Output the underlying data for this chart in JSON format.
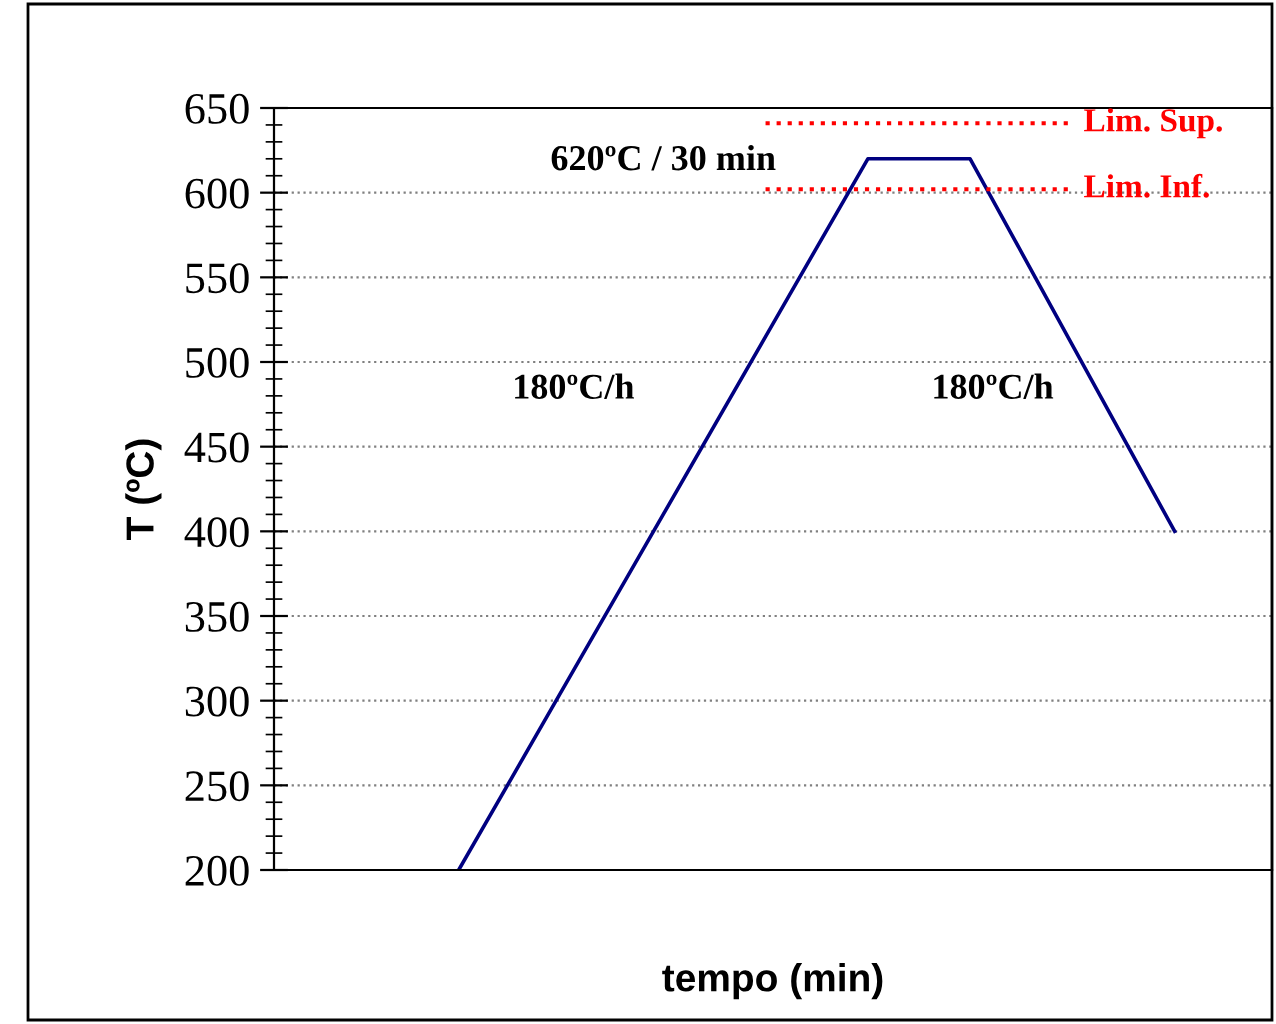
{
  "chart_data": {
    "type": "line",
    "xlabel": "tempo (min)",
    "ylabel": "T (ºC)",
    "categories": [
      null,
      null,
      null,
      null,
      null,
      null,
      null,
      null
    ],
    "ylim": [
      200,
      650
    ],
    "yticks": [
      200,
      250,
      300,
      350,
      400,
      450,
      500,
      550,
      600,
      650
    ],
    "grid": "y",
    "legend": false,
    "marker": "none",
    "series": [
      {
        "color": "#000080",
        "values": [
          200,
          305,
          410,
          515,
          620,
          620,
          510,
          400
        ],
        "line_style": "solid"
      },
      {
        "name": "Lim. Sup.",
        "color": "#ff0000",
        "values": [
          null,
          null,
          null,
          641,
          641,
          641,
          641,
          null
        ],
        "line_style": "dotted"
      },
      {
        "name": "Lim. Inf.",
        "color": "#ff0000",
        "values": [
          null,
          null,
          null,
          602,
          602,
          602,
          602,
          null
        ],
        "line_style": "dotted"
      }
    ],
    "annotations": [
      "620ºC / 30 min",
      "180ºC/h",
      "180ºC/h"
    ]
  }
}
